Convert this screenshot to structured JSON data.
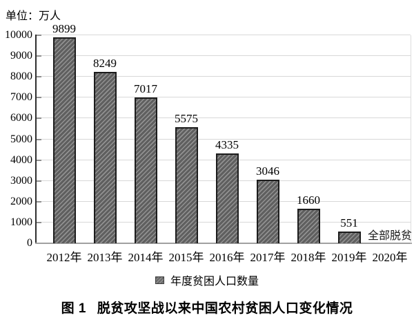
{
  "unit_label": "单位：万人",
  "caption": {
    "prefix": "图 1",
    "title": "脱贫攻坚战以来中国农村贫困人口变化情况"
  },
  "legend": {
    "label": "年度贫困人口数量"
  },
  "colors": {
    "bar_fill": "#5f5f5f",
    "bar_stripe": "#929292",
    "bar_border": "#1c1c1c",
    "gridline": "#d8d8d8",
    "y_axis": "#2e2e2e",
    "baseline": "#a0a0a0",
    "text": "#000000"
  },
  "chart_data": {
    "type": "bar",
    "title": "图 1 脱贫攻坚战以来中国农村贫困人口变化情况",
    "unit": "万人",
    "categories": [
      "2012年",
      "2013年",
      "2014年",
      "2015年",
      "2016年",
      "2017年",
      "2018年",
      "2019年",
      "2020年"
    ],
    "values": [
      9899,
      8249,
      7017,
      5575,
      4335,
      3046,
      1660,
      551,
      null
    ],
    "annotation": {
      "category": "2020年",
      "text": "全部脱贫"
    },
    "legend": [
      "年度贫困人口数量"
    ],
    "legend_position": "bottom",
    "xlabel": "",
    "ylabel": "单位：万人",
    "ylim": [
      0,
      10000
    ],
    "ytick_step": 1000,
    "grid": true,
    "hatch": "diagonal"
  }
}
